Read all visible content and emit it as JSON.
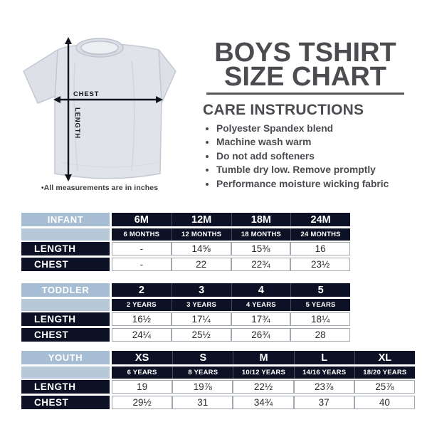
{
  "title": {
    "line1": "BOYS TSHIRT",
    "line2": "SIZE CHART"
  },
  "care": {
    "heading": "CARE INSTRUCTIONS",
    "items": [
      "Polyester Spandex blend",
      "Machine wash warm",
      "Do not add softeners",
      "Tumble dry low. Remove promptly",
      "Performance moisture wicking fabric"
    ]
  },
  "diagram": {
    "chest_label": "CHEST",
    "length_label": "LENGTH",
    "note": "•All measurements are in inches"
  },
  "colors": {
    "heading_gray": "#4b4b50",
    "header_blue": "#a6bdd3",
    "header_blue_light": "#b7c8d9",
    "navy": "#0d1126",
    "cell_border": "#a3a7ae",
    "shirt_fill": "#e0e3e9"
  },
  "tables": [
    {
      "group": "INFANT",
      "sizes": [
        "6M",
        "12M",
        "18M",
        "24M"
      ],
      "ages": [
        "6 MONTHS",
        "12 MONTHS",
        "18 MONTHS",
        "24 MONTHS"
      ],
      "rows": [
        {
          "label": "LENGTH",
          "values": [
            "-",
            "14⅝",
            "15⅜",
            "16"
          ]
        },
        {
          "label": "CHEST",
          "values": [
            "-",
            "22",
            "22¾",
            "23½"
          ]
        }
      ]
    },
    {
      "group": "TODDLER",
      "sizes": [
        "2",
        "3",
        "4",
        "5"
      ],
      "ages": [
        "2 YEARS",
        "3 YEARS",
        "4 YEARS",
        "5 YEARS"
      ],
      "rows": [
        {
          "label": "LENGTH",
          "values": [
            "16½",
            "17¼",
            "17¾",
            "18¼"
          ]
        },
        {
          "label": "CHEST",
          "values": [
            "24¼",
            "25½",
            "26¾",
            "28"
          ]
        }
      ]
    },
    {
      "group": "YOUTH",
      "sizes": [
        "XS",
        "S",
        "M",
        "L",
        "XL"
      ],
      "ages": [
        "6 YEARS",
        "8 YEARS",
        "10/12 YEARS",
        "14/16 YEARS",
        "18/20 YEARS"
      ],
      "rows": [
        {
          "label": "LENGTH",
          "values": [
            "19",
            "19⅞",
            "22½",
            "23⅞",
            "25⅞"
          ]
        },
        {
          "label": "CHEST",
          "values": [
            "29½",
            "31",
            "34¾",
            "37",
            "40"
          ]
        }
      ]
    }
  ]
}
